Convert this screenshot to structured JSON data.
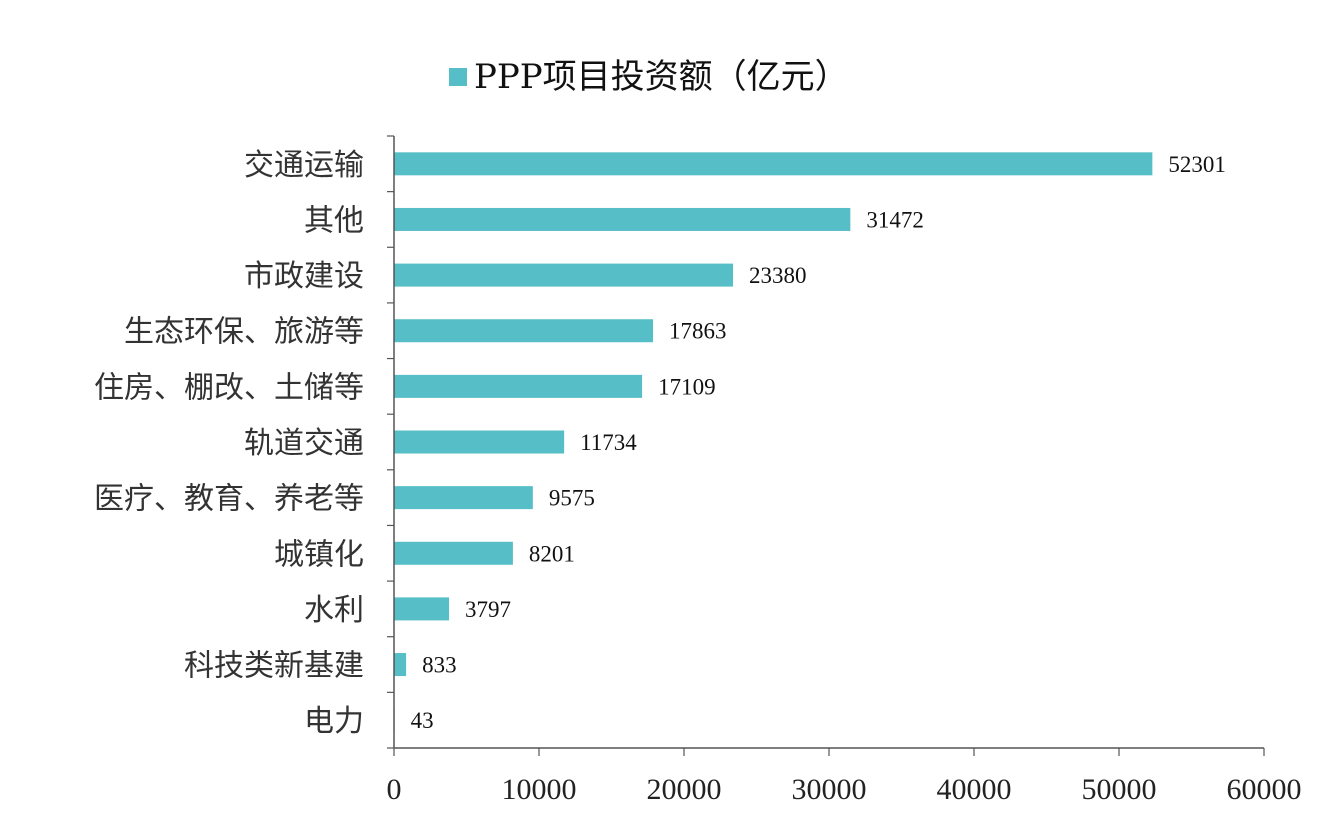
{
  "chart_data": {
    "type": "bar",
    "orientation": "horizontal",
    "categories": [
      "交通运输",
      "其他",
      "市政建设",
      "生态环保、旅游等",
      "住房、棚改、土储等",
      "轨道交通",
      "医疗、教育、养老等",
      "城镇化",
      "水利",
      "科技类新基建",
      "电力"
    ],
    "series": [
      {
        "name": "PPP项目投资额（亿元）",
        "values": [
          52301,
          31472,
          23380,
          17863,
          17109,
          11734,
          9575,
          8201,
          3797,
          833,
          43
        ]
      }
    ],
    "data_labels": [
      "52301",
      "31472",
      "23380",
      "17863",
      "17109",
      "11734",
      "9575",
      "8201",
      "3797",
      "833",
      "43"
    ],
    "xlim": [
      0,
      60000
    ],
    "x_ticks": [
      0,
      10000,
      20000,
      30000,
      40000,
      50000,
      60000
    ],
    "x_tick_labels": [
      "0",
      "10000",
      "20000",
      "30000",
      "40000",
      "50000",
      "60000"
    ],
    "grid": false,
    "legend_position": "top",
    "colors": {
      "bar": "#56bec6",
      "axis": "#555555"
    }
  }
}
